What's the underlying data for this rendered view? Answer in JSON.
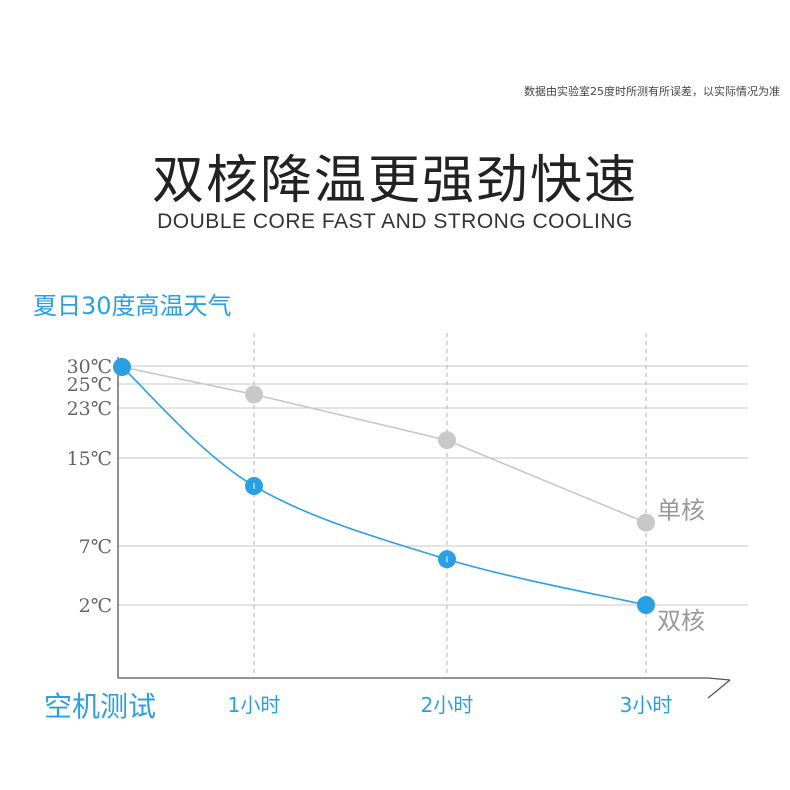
{
  "header": {
    "disclaimer": "数据由实验室25度时所测有所误差，以实际情况为准",
    "title": "双核降温更强劲快速",
    "subtitle": "DOUBLE CORE FAST AND STRONG COOLING"
  },
  "chart_data": {
    "type": "line",
    "title": "夏日30度高温天气",
    "xlabel": "空机测试",
    "ylabel": "",
    "categories": [
      "",
      "1小时",
      "2小时",
      "3小时"
    ],
    "yticks": [
      "30℃",
      "25℃",
      "23℃",
      "15℃",
      "7℃",
      "2℃"
    ],
    "ylim": [
      -4,
      33
    ],
    "grid": true,
    "series": [
      {
        "name": "单核",
        "values": [
          28,
          25,
          20,
          11
        ],
        "color": "#c8c8c8"
      },
      {
        "name": "双核",
        "values": [
          28,
          15,
          7,
          2
        ],
        "color": "#2a9fe4"
      }
    ]
  }
}
